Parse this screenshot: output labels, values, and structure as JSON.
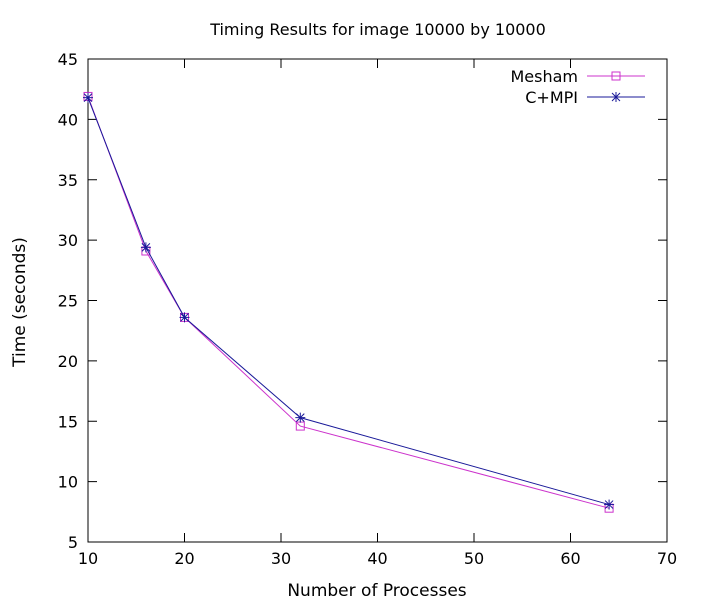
{
  "chart_data": {
    "type": "line",
    "title": "Timing Results for image 10000 by 10000",
    "xlabel": "Number of Processes",
    "ylabel": "Time (seconds)",
    "xlim": [
      10,
      70
    ],
    "ylim": [
      5,
      45
    ],
    "xticks": [
      10,
      20,
      30,
      40,
      50,
      60,
      70
    ],
    "yticks": [
      5,
      10,
      15,
      20,
      25,
      30,
      35,
      40,
      45
    ],
    "grid": false,
    "legend_position": "top-right",
    "series": [
      {
        "name": "Mesham",
        "marker": "square",
        "color": "#cc33cc",
        "x": [
          10,
          16,
          20,
          32,
          64
        ],
        "y": [
          41.9,
          29.1,
          23.6,
          14.6,
          7.8
        ]
      },
      {
        "name": "C+MPI",
        "marker": "star",
        "color": "#1a1a99",
        "x": [
          10,
          16,
          20,
          32,
          64
        ],
        "y": [
          41.8,
          29.4,
          23.6,
          15.3,
          8.1
        ]
      }
    ]
  }
}
